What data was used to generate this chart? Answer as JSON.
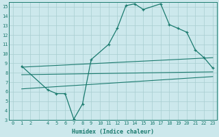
{
  "xlabel": "Humidex (Indice chaleur)",
  "bg_color": "#cce8ec",
  "line_color": "#1a7a6e",
  "grid_color": "#a8cdd0",
  "xlim": [
    -0.5,
    23.5
  ],
  "ylim": [
    3,
    15.5
  ],
  "main_x": [
    1,
    4,
    5,
    6,
    7,
    8,
    9,
    11,
    12,
    13,
    14,
    15,
    17,
    18,
    19,
    20,
    21,
    22,
    23
  ],
  "main_y": [
    8.7,
    6.2,
    5.8,
    5.8,
    3.1,
    4.7,
    9.4,
    11.0,
    12.7,
    15.1,
    15.3,
    14.7,
    15.3,
    13.1,
    12.7,
    12.3,
    10.4,
    9.6,
    8.5
  ],
  "trend1_x": [
    1,
    23
  ],
  "trend1_y": [
    7.8,
    8.1
  ],
  "trend2_x": [
    1,
    23
  ],
  "trend2_y": [
    8.6,
    9.6
  ],
  "trend3_x": [
    1,
    23
  ],
  "trend3_y": [
    6.3,
    7.6
  ]
}
